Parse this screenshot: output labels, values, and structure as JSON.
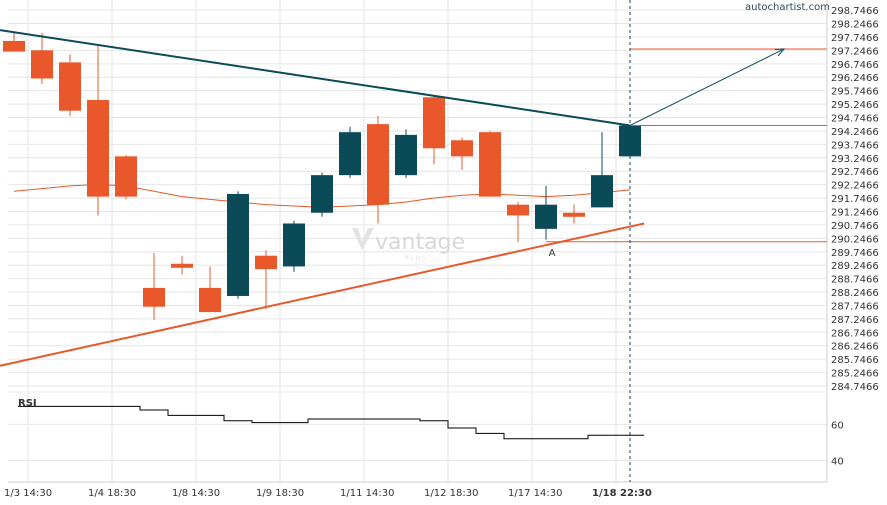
{
  "brand": "autochartist.com",
  "watermark": {
    "name": "vantage",
    "sub": "PLUS"
  },
  "rsi_label": "RSI",
  "marker_label": "A",
  "colors": {
    "bull": "#0b4a57",
    "bear": "#e8582a",
    "resistance": "#0b4a57",
    "support": "#e8582a",
    "ma": "#e8582a",
    "hline": "#e8582a",
    "rsi": "#000000",
    "grid": "#e6e6e6"
  },
  "chart_data": {
    "type": "candlestick",
    "title": "",
    "price_ticks": [
      298.7466,
      298.2466,
      297.7466,
      297.2466,
      296.7466,
      296.2466,
      295.7466,
      295.2466,
      294.7466,
      294.2466,
      293.7466,
      293.2466,
      292.7466,
      292.2466,
      291.7466,
      291.2466,
      290.7466,
      290.2466,
      289.7466,
      289.2466,
      288.7466,
      288.2466,
      287.7466,
      287.2466,
      286.7466,
      286.2466,
      285.7466,
      285.2466,
      284.7466
    ],
    "price_tick_labels": [
      "298.7466",
      "298.2466",
      "297.7466",
      "297.2466",
      "296.7466",
      "296.2466",
      "295.7466",
      "295.2466",
      "294.7466",
      "294.2466",
      "293.7466",
      "293.2466",
      "292.7466",
      "292.2466",
      "291.7466",
      "291.2466",
      "290.7466",
      "290.2466",
      "289.7466",
      "289.2466",
      "288.7466",
      "288.2466",
      "287.7466",
      "287.2466",
      "286.7466",
      "286.2466",
      "285.7466",
      "285.2466",
      "284.7466"
    ],
    "ylim": [
      284.3,
      298.9
    ],
    "x_tick_labels": [
      "1/3 14:30",
      "1/4 18:30",
      "1/8 14:30",
      "1/9 18:30",
      "1/11 14:30",
      "1/12 18:30",
      "1/17 14:30",
      "1/18 22:30"
    ],
    "x_tick_index": [
      0.5,
      3.5,
      6.5,
      9.5,
      12.5,
      15.5,
      18.5,
      21.5
    ],
    "candles": [
      {
        "o": 297.6,
        "h": 297.9,
        "c": 297.2,
        "l": 297.2
      },
      {
        "o": 297.25,
        "h": 297.9,
        "c": 296.2,
        "l": 296.0
      },
      {
        "o": 296.8,
        "h": 297.1,
        "c": 295.0,
        "l": 294.8
      },
      {
        "o": 295.4,
        "h": 297.4,
        "c": 291.8,
        "l": 291.1
      },
      {
        "o": 293.3,
        "h": 293.35,
        "c": 291.8,
        "l": 291.7
      },
      {
        "o": 288.4,
        "h": 289.7,
        "c": 287.7,
        "l": 287.2
      },
      {
        "o": 289.3,
        "h": 289.6,
        "c": 289.15,
        "l": 288.9
      },
      {
        "o": 288.4,
        "h": 289.2,
        "c": 287.5,
        "l": 287.5
      },
      {
        "o": 288.1,
        "h": 292.0,
        "c": 291.9,
        "l": 288.0
      },
      {
        "o": 289.6,
        "h": 289.8,
        "c": 289.1,
        "l": 287.6
      },
      {
        "o": 289.2,
        "h": 290.9,
        "c": 290.8,
        "l": 289.0
      },
      {
        "o": 291.2,
        "h": 292.7,
        "c": 292.6,
        "l": 291.05
      },
      {
        "o": 292.6,
        "h": 294.4,
        "c": 294.2,
        "l": 292.5
      },
      {
        "o": 294.5,
        "h": 294.8,
        "c": 291.5,
        "l": 290.8
      },
      {
        "o": 292.6,
        "h": 294.3,
        "c": 294.1,
        "l": 292.5
      },
      {
        "o": 295.5,
        "h": 295.55,
        "c": 293.6,
        "l": 293.0
      },
      {
        "o": 293.9,
        "h": 294.0,
        "c": 293.3,
        "l": 292.8
      },
      {
        "o": 294.2,
        "h": 294.25,
        "c": 291.8,
        "l": 291.8
      },
      {
        "o": 291.5,
        "h": 291.6,
        "c": 291.1,
        "l": 290.1
      },
      {
        "o": 290.6,
        "h": 292.2,
        "c": 291.5,
        "l": 290.2
      },
      {
        "o": 291.2,
        "h": 291.5,
        "c": 291.05,
        "l": 290.8
      },
      {
        "o": 291.4,
        "h": 294.2,
        "c": 292.6,
        "l": 291.4
      },
      {
        "o": 293.3,
        "h": 294.45,
        "c": 294.45,
        "l": 293.3
      }
    ],
    "moving_average": [
      292.0,
      292.1,
      292.2,
      292.25,
      292.2,
      292.0,
      291.8,
      291.7,
      291.6,
      291.5,
      291.45,
      291.4,
      291.45,
      291.5,
      291.6,
      291.75,
      291.85,
      291.9,
      291.85,
      291.8,
      291.85,
      291.95,
      292.05
    ],
    "resistance_line": [
      {
        "i": -0.5,
        "v": 298.0
      },
      {
        "i": 22.0,
        "v": 294.45
      }
    ],
    "support_line": [
      {
        "i": -0.5,
        "v": 285.5
      },
      {
        "i": 22.5,
        "v": 290.8
      }
    ],
    "projection_arrow": [
      {
        "i": 22.0,
        "v": 294.45
      },
      {
        "i": 27.5,
        "v": 297.3
      }
    ],
    "horizontal_levels": [
      {
        "value": 297.3,
        "from_i": 22.0
      },
      {
        "value": 294.45,
        "from_i": 22.0
      },
      {
        "value": 290.12,
        "from_i": 19.0
      }
    ],
    "marker": {
      "i": 19.2,
      "v": 289.7
    },
    "current_index": 22,
    "rsi_ticks": [
      60,
      40
    ],
    "rsi_ylim": [
      28,
      78
    ],
    "rsi": [
      70,
      70,
      70,
      70,
      70,
      68,
      65,
      65,
      62,
      61,
      61,
      63,
      63,
      63,
      63,
      62,
      58,
      55,
      52,
      52,
      52,
      54,
      54
    ]
  }
}
